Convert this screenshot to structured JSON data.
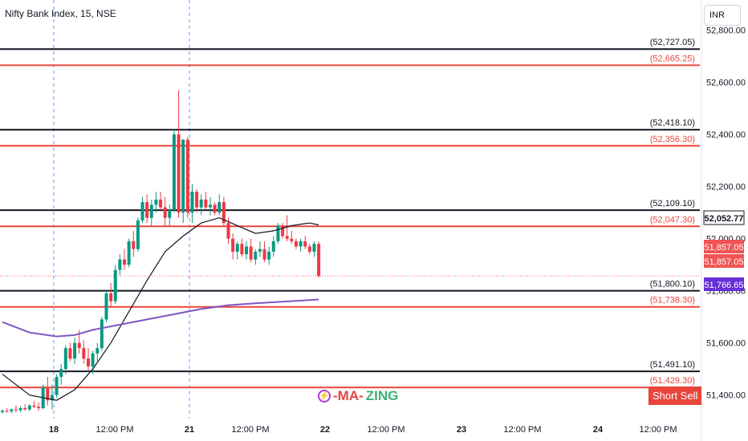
{
  "header": {
    "title": "Nifty Bank Index, 15, NSE",
    "currency": "INR"
  },
  "watermark": {
    "icon": "lightning-icon",
    "part1": "-MA-",
    "part2": "ZING"
  },
  "actions": {
    "short_sell": "Short Sell"
  },
  "colors": {
    "up": "#089981",
    "down": "#f23645",
    "resistance": "#131722",
    "support": "#e8453c",
    "ma_fast": "#131722",
    "ma_slow": "#7e57c2",
    "last_price_tag": "#131722",
    "price_tag_red": "#f05454",
    "ma_tag": "#6430d8"
  },
  "chart_data": {
    "type": "candlestick",
    "title": "Nifty Bank Index, 15, NSE",
    "x_axis": {
      "ticks": [
        "18",
        "12:00 PM",
        "21",
        "12:00 PM",
        "22",
        "12:00 PM",
        "23",
        "12:00 PM",
        "24",
        "12:00 PM"
      ],
      "bold_ticks": [
        "18",
        "21",
        "22",
        "23",
        "24"
      ],
      "session_separators": [
        "18",
        "21"
      ]
    },
    "y_axis": {
      "side": "right",
      "range": [
        51310,
        52900
      ],
      "ticks": [
        51400,
        51600,
        51800,
        52000,
        52200,
        52400,
        52600,
        52800
      ],
      "tick_labels": [
        "51,400.00",
        "51,600.00",
        "51,800.00",
        "52,000.00",
        "52,200.00",
        "52,400.00",
        "52,600.00",
        "52,800.00"
      ]
    },
    "levels": [
      {
        "value": 52727.05,
        "label": "(52,727.05)",
        "kind": "resistance"
      },
      {
        "value": 52665.25,
        "label": "(52,665.25)",
        "kind": "support"
      },
      {
        "value": 52418.1,
        "label": "(52,418.10)",
        "kind": "resistance"
      },
      {
        "value": 52356.3,
        "label": "(52,356.30)",
        "kind": "support"
      },
      {
        "value": 52109.1,
        "label": "(52,109.10)",
        "kind": "resistance"
      },
      {
        "value": 52047.3,
        "label": "(52,047.30)",
        "kind": "support"
      },
      {
        "value": 51800.1,
        "label": "(51,800.10)",
        "kind": "resistance"
      },
      {
        "value": 51738.3,
        "label": "(51,738.30)",
        "kind": "support"
      },
      {
        "value": 51491.1,
        "label": "(51,491.10)",
        "kind": "resistance"
      },
      {
        "value": 51429.3,
        "label": "(51,429.30)",
        "kind": "support"
      }
    ],
    "price_tags": [
      {
        "value": 52052.77,
        "label": "52,052.77",
        "style": "last"
      },
      {
        "value": 51857.05,
        "label": "51,857.05",
        "style": "red"
      },
      {
        "value": 51857.05,
        "label": "51,857.05",
        "style": "red"
      },
      {
        "value": 51766.65,
        "label": "51,766.65",
        "style": "ma"
      }
    ],
    "current_price": 51857.05,
    "candles": [
      [
        51335,
        51345,
        51328,
        51340
      ],
      [
        51340,
        51350,
        51332,
        51338
      ],
      [
        51338,
        51348,
        51330,
        51345
      ],
      [
        51345,
        51360,
        51335,
        51342
      ],
      [
        51342,
        51358,
        51335,
        51350
      ],
      [
        51350,
        51365,
        51340,
        51345
      ],
      [
        51345,
        51365,
        51338,
        51360
      ],
      [
        51360,
        51378,
        51350,
        51355
      ],
      [
        51355,
        51372,
        51340,
        51350
      ],
      [
        51350,
        51440,
        51345,
        51430
      ],
      [
        51430,
        51470,
        51360,
        51380
      ],
      [
        51380,
        51440,
        51345,
        51400
      ],
      [
        51400,
        51480,
        51390,
        51470
      ],
      [
        51470,
        51520,
        51440,
        51500
      ],
      [
        51500,
        51590,
        51480,
        51580
      ],
      [
        51580,
        51600,
        51530,
        51540
      ],
      [
        51540,
        51620,
        51520,
        51600
      ],
      [
        51600,
        51650,
        51560,
        51580
      ],
      [
        51580,
        51610,
        51520,
        51540
      ],
      [
        51540,
        51580,
        51490,
        51510
      ],
      [
        51510,
        51570,
        51480,
        51560
      ],
      [
        51560,
        51600,
        51530,
        51580
      ],
      [
        51580,
        51700,
        51570,
        51690
      ],
      [
        51690,
        51800,
        51680,
        51790
      ],
      [
        51790,
        51830,
        51740,
        51760
      ],
      [
        51760,
        51900,
        51750,
        51880
      ],
      [
        51880,
        51940,
        51860,
        51920
      ],
      [
        51920,
        51960,
        51880,
        51900
      ],
      [
        51900,
        52000,
        51890,
        51990
      ],
      [
        51990,
        52030,
        51930,
        51960
      ],
      [
        51960,
        52080,
        51950,
        52070
      ],
      [
        52070,
        52160,
        52060,
        52140
      ],
      [
        52140,
        52170,
        52060,
        52080
      ],
      [
        52080,
        52150,
        52050,
        52130
      ],
      [
        52130,
        52180,
        52100,
        52150
      ],
      [
        52150,
        52180,
        52110,
        52120
      ],
      [
        52120,
        52160,
        52050,
        52080
      ],
      [
        52080,
        52130,
        52050,
        52110
      ],
      [
        52110,
        52420,
        52100,
        52400
      ],
      [
        52400,
        52570,
        52080,
        52100
      ],
      [
        52100,
        52380,
        52060,
        52380
      ],
      [
        52380,
        52390,
        52080,
        52100
      ],
      [
        52100,
        52210,
        52060,
        52180
      ],
      [
        52180,
        52190,
        52100,
        52120
      ],
      [
        52120,
        52170,
        52090,
        52150
      ],
      [
        52150,
        52180,
        52110,
        52120
      ],
      [
        52120,
        52160,
        52090,
        52130
      ],
      [
        52130,
        52140,
        52090,
        52100
      ],
      [
        52100,
        52170,
        52090,
        52140
      ],
      [
        52140,
        52160,
        52050,
        52060
      ],
      [
        52060,
        52080,
        51980,
        52000
      ],
      [
        52000,
        52020,
        51920,
        51950
      ],
      [
        51950,
        51990,
        51920,
        51980
      ],
      [
        51980,
        52000,
        51930,
        51940
      ],
      [
        51940,
        51990,
        51920,
        51970
      ],
      [
        51970,
        52000,
        51910,
        51920
      ],
      [
        51920,
        51960,
        51900,
        51950
      ],
      [
        51950,
        51990,
        51930,
        51960
      ],
      [
        51960,
        51990,
        51910,
        51920
      ],
      [
        51920,
        51970,
        51900,
        51950
      ],
      [
        51950,
        52010,
        51930,
        51990
      ],
      [
        51990,
        52060,
        51980,
        52050
      ],
      [
        52050,
        52060,
        52000,
        52010
      ],
      [
        52010,
        52090,
        51990,
        52000
      ],
      [
        52000,
        52030,
        51980,
        51990
      ],
      [
        51990,
        52000,
        51960,
        51970
      ],
      [
        51970,
        52000,
        51950,
        51990
      ],
      [
        51990,
        52010,
        51960,
        51970
      ],
      [
        51970,
        51980,
        51940,
        51950
      ],
      [
        51950,
        51990,
        51930,
        51980
      ],
      [
        51980,
        51990,
        51850,
        51857.05
      ]
    ],
    "moving_averages": [
      {
        "kind": "fast",
        "points": [
          [
            0,
            51480
          ],
          [
            6,
            51400
          ],
          [
            12,
            51380
          ],
          [
            16,
            51420
          ],
          [
            20,
            51500
          ],
          [
            24,
            51600
          ],
          [
            28,
            51720
          ],
          [
            32,
            51840
          ],
          [
            36,
            51950
          ],
          [
            40,
            52010
          ],
          [
            44,
            52060
          ],
          [
            48,
            52080
          ],
          [
            52,
            52050
          ],
          [
            56,
            52020
          ],
          [
            60,
            52030
          ],
          [
            64,
            52050
          ],
          [
            68,
            52060
          ],
          [
            70,
            52052.77
          ]
        ]
      },
      {
        "kind": "slow",
        "points": [
          [
            0,
            51680
          ],
          [
            6,
            51640
          ],
          [
            12,
            51625
          ],
          [
            16,
            51630
          ],
          [
            20,
            51650
          ],
          [
            26,
            51670
          ],
          [
            32,
            51690
          ],
          [
            38,
            51710
          ],
          [
            44,
            51730
          ],
          [
            50,
            51745
          ],
          [
            56,
            51752
          ],
          [
            62,
            51758
          ],
          [
            70,
            51766.65
          ]
        ]
      }
    ]
  }
}
